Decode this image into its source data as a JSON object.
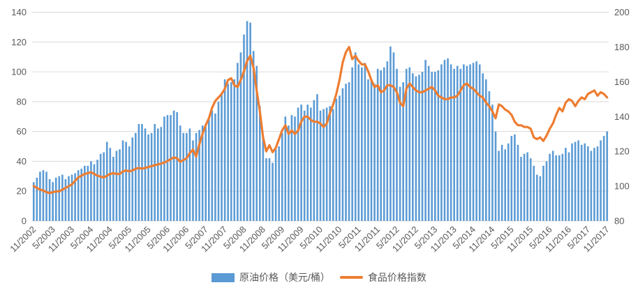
{
  "chart_data": {
    "type": "bar",
    "title": "",
    "x_tick_labels": [
      "11/2002",
      "5/2003",
      "11/2003",
      "5/2004",
      "11/2004",
      "5/2005",
      "11/2005",
      "5/2006",
      "11/2006",
      "5/2007",
      "11/2007",
      "5/2008",
      "11/2008",
      "5/2009",
      "11/2009",
      "5/2010",
      "11/2010",
      "5/2011",
      "11/2011",
      "5/2012",
      "11/2012",
      "5/2013",
      "11/2013",
      "5/2014",
      "11/2014",
      "5/2015",
      "11/2015",
      "5/2016",
      "11/2016",
      "5/2017",
      "11/2017"
    ],
    "x_tick_interval_months": 6,
    "left_axis": {
      "min": 0,
      "max": 140,
      "ticks": [
        0,
        20,
        40,
        60,
        80,
        100,
        120,
        140
      ]
    },
    "right_axis": {
      "min": 80,
      "max": 200,
      "ticks": [
        80,
        100,
        120,
        140,
        160,
        180,
        200
      ]
    },
    "grid": true,
    "legend_position": "bottom",
    "series": [
      {
        "name": "原油价格（美元/桶）",
        "type": "bar",
        "axis": "left",
        "color": "#5B9BD5",
        "values": [
          26,
          29,
          33,
          34,
          33,
          28,
          26,
          29,
          30,
          31,
          28,
          30,
          31,
          32,
          34,
          35,
          37,
          37,
          40,
          38,
          41,
          45,
          46,
          53,
          49,
          43,
          47,
          48,
          54,
          53,
          50,
          56,
          59,
          65,
          65,
          62,
          58,
          59,
          65,
          62,
          63,
          70,
          71,
          71,
          74,
          73,
          64,
          59,
          59,
          62,
          54,
          59,
          61,
          64,
          63,
          68,
          74,
          72,
          80,
          86,
          95,
          92,
          93,
          95,
          106,
          113,
          125,
          134,
          133,
          114,
          104,
          77,
          57,
          42,
          42,
          39,
          48,
          50,
          59,
          70,
          64,
          71,
          70,
          76,
          78,
          74,
          78,
          76,
          81,
          85,
          74,
          75,
          76,
          77,
          75,
          82,
          84,
          89,
          92,
          93,
          103,
          113,
          105,
          103,
          106,
          95,
          94,
          92,
          102,
          101,
          103,
          107,
          117,
          113,
          102,
          90,
          93,
          102,
          103,
          99,
          97,
          98,
          100,
          108,
          104,
          100,
          100,
          101,
          105,
          108,
          109,
          105,
          102,
          104,
          102,
          105,
          104,
          105,
          106,
          107,
          105,
          99,
          95,
          87,
          78,
          60,
          47,
          51,
          48,
          52,
          57,
          58,
          51,
          43,
          45,
          46,
          42,
          37,
          31,
          30,
          37,
          40,
          45,
          47,
          44,
          44,
          45,
          49,
          46,
          52,
          53,
          54,
          51,
          52,
          50,
          47,
          49,
          50,
          54,
          57,
          60
        ]
      },
      {
        "name": "食品价格指数",
        "type": "line",
        "axis": "right",
        "color": "#ED7D31",
        "values": [
          100,
          99,
          98,
          97.5,
          96.5,
          96,
          96.5,
          97,
          97,
          98,
          99,
          100,
          101,
          103,
          105,
          106,
          107,
          107.5,
          108,
          107,
          106,
          105.5,
          105,
          106,
          107,
          107.5,
          107,
          107,
          108.5,
          109,
          108.5,
          109,
          110,
          110.5,
          110,
          110.5,
          111,
          111.5,
          112,
          112.5,
          113,
          113.5,
          114.5,
          115.5,
          116.5,
          116,
          114,
          115,
          116,
          119,
          121,
          117,
          124,
          130,
          135,
          139,
          145,
          149,
          151,
          153,
          156,
          161,
          162,
          158,
          157,
          161,
          166,
          172,
          175,
          168,
          155,
          143,
          128,
          120,
          123.5,
          119.5,
          122,
          127,
          132,
          135,
          130,
          132,
          130,
          132,
          137,
          140,
          140,
          138,
          137,
          137,
          136,
          134,
          136,
          142,
          147,
          153,
          161,
          171,
          177,
          180,
          173,
          175,
          172,
          170,
          170,
          166,
          161,
          157,
          158,
          154,
          155,
          158,
          158,
          157,
          154,
          148,
          146,
          156,
          159,
          157,
          155,
          154,
          154,
          155,
          156,
          157,
          155,
          152,
          151,
          150,
          150,
          151,
          151,
          152,
          155,
          158,
          159,
          157,
          156,
          154,
          152,
          151,
          148,
          146,
          143,
          139,
          147,
          146,
          144,
          143,
          141,
          137,
          135,
          135,
          134,
          134,
          133,
          128,
          127,
          128,
          126,
          129,
          133,
          136,
          141,
          145,
          143,
          148,
          150,
          149,
          146,
          149,
          151,
          150,
          153,
          154,
          155,
          152,
          154,
          153,
          151
        ]
      }
    ]
  },
  "legend": {
    "bar_label": "原油价格（美元/桶）",
    "line_label": "食品价格指数"
  },
  "colors": {
    "bar": "#5B9BD5",
    "line": "#ED7D31",
    "gridline": "#D9D9D9",
    "axis_text": "#595959",
    "background": "#FFFFFF"
  }
}
